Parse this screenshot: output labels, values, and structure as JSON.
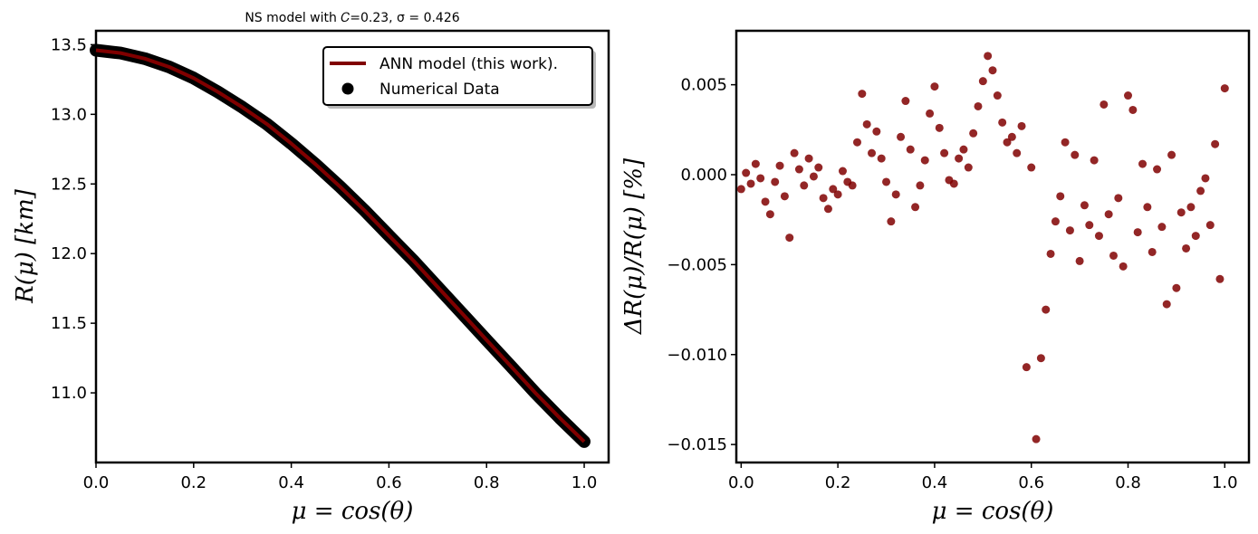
{
  "chart_data": [
    {
      "type": "line",
      "title": "NS model with 𝐶=0.23, σ = 0.426",
      "xlabel": "μ = cos(θ)",
      "ylabel": "R(μ) [km]",
      "xlim": [
        0.0,
        1.05
      ],
      "ylim": [
        10.5,
        13.6
      ],
      "xticks": [
        "0.0",
        "0.2",
        "0.4",
        "0.6",
        "0.8",
        "1.0"
      ],
      "yticks": [
        "11.0",
        "11.5",
        "12.0",
        "12.5",
        "13.0",
        "13.5"
      ],
      "legend_position": "top-right",
      "legend": [
        "ANN model (this work).",
        "Numerical Data"
      ],
      "colors": {
        "line": "#800000",
        "scatter": "#000000"
      },
      "series": [
        {
          "name": "ANN model (this work).",
          "x": [
            0.0,
            0.05,
            0.1,
            0.15,
            0.2,
            0.25,
            0.3,
            0.35,
            0.4,
            0.45,
            0.5,
            0.55,
            0.6,
            0.65,
            0.7,
            0.75,
            0.8,
            0.85,
            0.9,
            0.95,
            1.0
          ],
          "y": [
            13.46,
            13.44,
            13.4,
            13.34,
            13.26,
            13.16,
            13.05,
            12.93,
            12.79,
            12.64,
            12.48,
            12.31,
            12.13,
            11.95,
            11.76,
            11.57,
            11.38,
            11.19,
            11.0,
            10.82,
            10.65
          ]
        }
      ],
      "scatter_note": "Numerical Data points overlap the ANN curve"
    },
    {
      "type": "scatter",
      "title": "",
      "xlabel": "μ = cos(θ)",
      "ylabel": "ΔR(μ)/R(μ) [%]",
      "xlim": [
        -0.01,
        1.05
      ],
      "ylim": [
        -0.016,
        0.008
      ],
      "xticks": [
        "0.0",
        "0.2",
        "0.4",
        "0.6",
        "0.8",
        "1.0"
      ],
      "yticks": [
        "0.005",
        "0.000",
        "−0.005",
        "−0.010",
        "−0.015"
      ],
      "colors": {
        "points": "#800000"
      },
      "series": [
        {
          "x": [
            0.0,
            0.01,
            0.02,
            0.03,
            0.04,
            0.05,
            0.06,
            0.07,
            0.08,
            0.09,
            0.1,
            0.11,
            0.12,
            0.13,
            0.14,
            0.15,
            0.16,
            0.17,
            0.18,
            0.19,
            0.2,
            0.21,
            0.22,
            0.23,
            0.24,
            0.25,
            0.26,
            0.27,
            0.28,
            0.29,
            0.3,
            0.31,
            0.32,
            0.33,
            0.34,
            0.35,
            0.36,
            0.37,
            0.38,
            0.39,
            0.4,
            0.41,
            0.42,
            0.43,
            0.44,
            0.45,
            0.46,
            0.47,
            0.48,
            0.49,
            0.5,
            0.51,
            0.52,
            0.53,
            0.54,
            0.55,
            0.56,
            0.57,
            0.58,
            0.59,
            0.6,
            0.61,
            0.62,
            0.63,
            0.64,
            0.65,
            0.66,
            0.67,
            0.68,
            0.69,
            0.7,
            0.71,
            0.72,
            0.73,
            0.74,
            0.75,
            0.76,
            0.77,
            0.78,
            0.79,
            0.8,
            0.81,
            0.82,
            0.83,
            0.84,
            0.85,
            0.86,
            0.87,
            0.88,
            0.89,
            0.9,
            0.91,
            0.92,
            0.93,
            0.94,
            0.95,
            0.96,
            0.97,
            0.98,
            0.99,
            1.0
          ],
          "y": [
            -0.0008,
            0.0001,
            -0.0005,
            0.0006,
            -0.0002,
            -0.0015,
            -0.0022,
            -0.0004,
            0.0005,
            -0.0012,
            -0.0035,
            0.0012,
            0.0003,
            -0.0006,
            0.0009,
            -0.0001,
            0.0004,
            -0.0013,
            -0.0019,
            -0.0008,
            -0.0011,
            0.0002,
            -0.0004,
            -0.0006,
            0.0018,
            0.0045,
            0.0028,
            0.0012,
            0.0024,
            0.0009,
            -0.0004,
            -0.0026,
            -0.0011,
            0.0021,
            0.0041,
            0.0014,
            -0.0018,
            -0.0006,
            0.0008,
            0.0034,
            0.0049,
            0.0026,
            0.0012,
            -0.0003,
            -0.0005,
            0.0009,
            0.0014,
            0.0004,
            0.0023,
            0.0038,
            0.0052,
            0.0066,
            0.0058,
            0.0044,
            0.0029,
            0.0018,
            0.0021,
            0.0012,
            0.0027,
            -0.0107,
            0.0004,
            -0.0147,
            -0.0102,
            -0.0075,
            -0.0044,
            -0.0026,
            -0.0012,
            0.0018,
            -0.0031,
            0.0011,
            -0.0048,
            -0.0017,
            -0.0028,
            0.0008,
            -0.0034,
            0.0039,
            -0.0022,
            -0.0045,
            -0.0013,
            -0.0051,
            0.0044,
            0.0036,
            -0.0032,
            0.0006,
            -0.0018,
            -0.0043,
            0.0003,
            -0.0029,
            -0.0072,
            0.0011,
            -0.0063,
            -0.0021,
            -0.0041,
            -0.0018,
            -0.0034,
            -0.0009,
            -0.0002,
            -0.0028,
            0.0017,
            -0.0058,
            0.0048
          ]
        }
      ]
    }
  ]
}
